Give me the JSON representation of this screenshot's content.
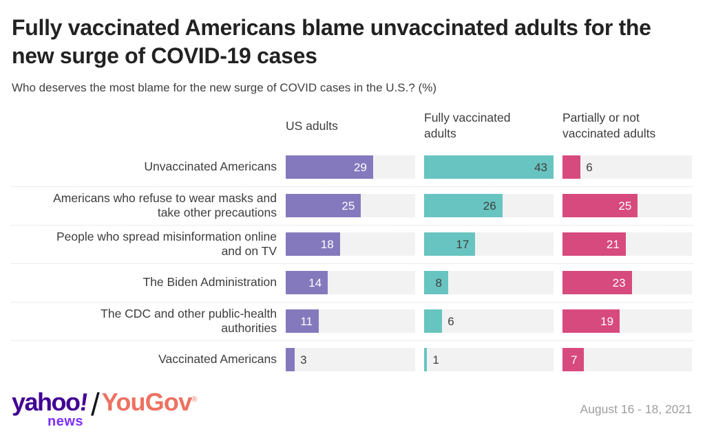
{
  "chart_data": {
    "type": "bar",
    "orientation": "horizontal",
    "title": "Fully vaccinated Americans blame unvaccinated adults for the new surge of COVID-19 cases",
    "subtitle": "Who deserves the most blame for the new surge of COVID cases in the U.S.? (%)",
    "categories": [
      "Unvaccinated Americans",
      "Americans who refuse to wear masks and\ntake other precautions",
      "People who spread misinformation online\nand on TV",
      "The Biden Administration",
      "The CDC and other public-health\nauthorities",
      "Vaccinated Americans"
    ],
    "series": [
      {
        "name": "US adults",
        "color": "#8579bd",
        "value_label_inside_color": "#ffffff",
        "values": [
          29,
          25,
          18,
          14,
          11,
          3
        ]
      },
      {
        "name": "Fully vaccinated adults",
        "color": "#68c4c0",
        "value_label_inside_color": "#3d3d3d",
        "values": [
          43,
          26,
          17,
          8,
          6,
          1
        ]
      },
      {
        "name": "Partially or not vaccinated adults",
        "color": "#d74a7e",
        "value_label_inside_color": "#ffffff",
        "values": [
          6,
          25,
          21,
          23,
          19,
          7
        ]
      }
    ],
    "xlim": [
      0,
      43
    ],
    "grid": false,
    "legend_position": "column-headers-top",
    "track_color": "#f2f2f2",
    "value_label_outside_color": "#3d3d3d"
  },
  "footer": {
    "brand": {
      "yahoo": "yahoo",
      "bang": "!",
      "news": "news",
      "separator": "/",
      "partner": "YouGov",
      "registered": "®"
    },
    "date": "August 16 - 18, 2021"
  }
}
